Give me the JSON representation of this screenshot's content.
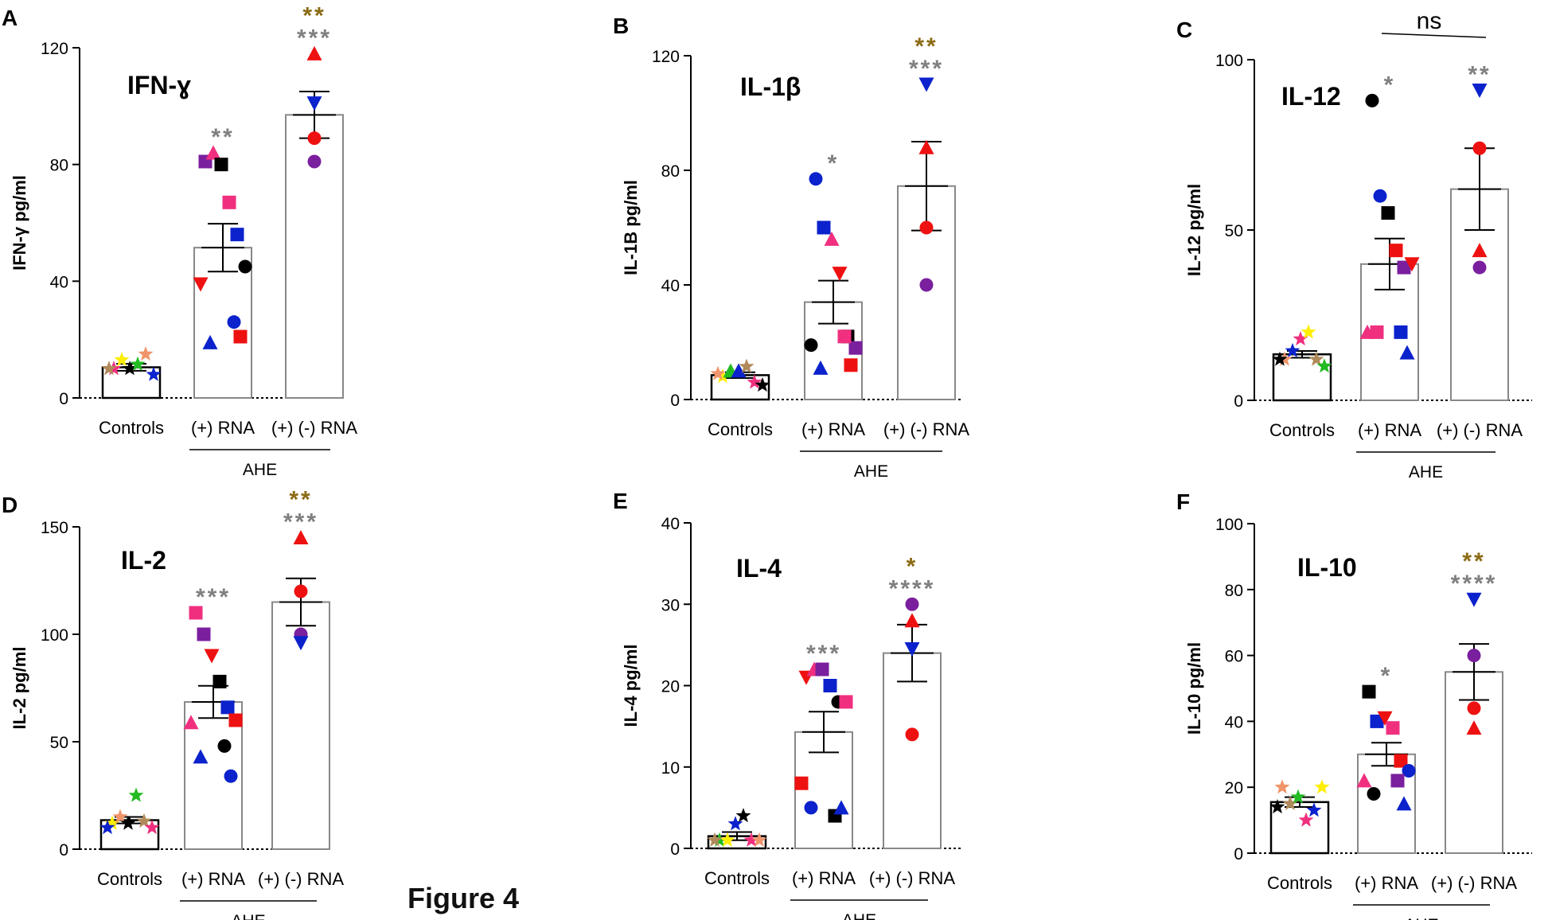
{
  "figure_label": "Figure 4",
  "colors": {
    "black": "#000000",
    "red": "#ee1111",
    "blue": "#0b22cc",
    "purple": "#7a1f9e",
    "pink": "#f0307f",
    "yellow": "#ffee00",
    "green": "#22bb22",
    "orange": "#f0956a",
    "tan": "#b08a5a",
    "grey_star": "#808080",
    "brown_star": "#8b6b14",
    "gold_star": "#8b6b14",
    "bar_fill": "#ffffff"
  },
  "group_label": "AHE",
  "chart_data": [
    {
      "panel": "A",
      "type": "bar",
      "title": "IFN-ɣ",
      "ylabel": "IFN-γ pg/ml",
      "ylim": [
        0,
        120
      ],
      "yticks": [
        0,
        40,
        80,
        120
      ],
      "categories": [
        "Controls",
        "(+) RNA",
        "(+) (-) RNA"
      ],
      "means": [
        10.5,
        51.5,
        97
      ],
      "sem": [
        1.2,
        8.2,
        8
      ],
      "sig_grey": [
        "",
        "**",
        "***"
      ],
      "sig_gold": [
        "",
        "",
        "**"
      ],
      "points": [
        [
          {
            "shape": "star",
            "color": "pink",
            "v": 10
          },
          {
            "shape": "star",
            "color": "yellow",
            "v": 13
          },
          {
            "shape": "star",
            "color": "black",
            "v": 10
          },
          {
            "shape": "star",
            "color": "green",
            "v": 11.5
          },
          {
            "shape": "star",
            "color": "orange",
            "v": 15
          },
          {
            "shape": "star",
            "color": "blue",
            "v": 8
          },
          {
            "shape": "star",
            "color": "tan",
            "v": 10
          }
        ],
        [
          {
            "shape": "square",
            "color": "purple",
            "v": 81
          },
          {
            "shape": "triangle",
            "color": "pink",
            "v": 84
          },
          {
            "shape": "square",
            "color": "black",
            "v": 80
          },
          {
            "shape": "square",
            "color": "pink",
            "v": 67
          },
          {
            "shape": "square",
            "color": "blue",
            "v": 56
          },
          {
            "shape": "circle",
            "color": "black",
            "v": 45
          },
          {
            "shape": "tri-down",
            "color": "red",
            "v": 39
          },
          {
            "shape": "circle",
            "color": "blue",
            "v": 26
          },
          {
            "shape": "triangle",
            "color": "blue",
            "v": 19
          },
          {
            "shape": "square",
            "color": "red",
            "v": 21
          }
        ],
        [
          {
            "shape": "triangle",
            "color": "red",
            "v": 118
          },
          {
            "shape": "tri-down",
            "color": "blue",
            "v": 101
          },
          {
            "shape": "circle",
            "color": "red",
            "v": 89
          },
          {
            "shape": "circle",
            "color": "purple",
            "v": 81
          }
        ]
      ]
    },
    {
      "panel": "B",
      "type": "bar",
      "title": "IL-1β",
      "ylabel": "IL-1B pg/ml",
      "ylim": [
        0,
        120
      ],
      "yticks": [
        0,
        40,
        80,
        120
      ],
      "categories": [
        "Controls",
        "(+) RNA",
        "(+) (-) RNA"
      ],
      "means": [
        8.5,
        34,
        74.5
      ],
      "sem": [
        1,
        7.5,
        15.5
      ],
      "sig_grey": [
        "",
        "*",
        "***"
      ],
      "sig_gold": [
        "",
        "",
        "**"
      ],
      "points": [
        [
          {
            "shape": "star",
            "color": "yellow",
            "v": 8
          },
          {
            "shape": "triangle",
            "color": "green",
            "v": 10
          },
          {
            "shape": "triangle",
            "color": "blue",
            "v": 10
          },
          {
            "shape": "star",
            "color": "tan",
            "v": 11.5
          },
          {
            "shape": "star",
            "color": "pink",
            "v": 6
          },
          {
            "shape": "star",
            "color": "black",
            "v": 5
          },
          {
            "shape": "star",
            "color": "orange",
            "v": 9
          }
        ],
        [
          {
            "shape": "circle",
            "color": "blue",
            "v": 77
          },
          {
            "shape": "square",
            "color": "blue",
            "v": 60
          },
          {
            "shape": "triangle",
            "color": "pink",
            "v": 56
          },
          {
            "shape": "tri-down",
            "color": "red",
            "v": 44
          },
          {
            "shape": "square",
            "color": "black",
            "v": 22
          },
          {
            "shape": "square",
            "color": "purple",
            "v": 18
          },
          {
            "shape": "circle",
            "color": "black",
            "v": 19
          },
          {
            "shape": "square",
            "color": "pink",
            "v": 22
          },
          {
            "shape": "triangle",
            "color": "blue",
            "v": 11
          },
          {
            "shape": "square",
            "color": "red",
            "v": 12
          }
        ],
        [
          {
            "shape": "tri-down",
            "color": "blue",
            "v": 110
          },
          {
            "shape": "triangle",
            "color": "red",
            "v": 88
          },
          {
            "shape": "circle",
            "color": "red",
            "v": 60
          },
          {
            "shape": "circle",
            "color": "purple",
            "v": 40
          }
        ]
      ]
    },
    {
      "panel": "C",
      "type": "bar",
      "title": "IL-12",
      "ylabel": "IL-12 pg/ml",
      "ylim": [
        0,
        100
      ],
      "yticks": [
        0,
        50,
        100
      ],
      "categories": [
        "Controls",
        "(+) RNA",
        "(+) (-) RNA"
      ],
      "means": [
        13.5,
        40,
        62
      ],
      "sem": [
        1,
        7.5,
        12
      ],
      "sig_grey": [
        "",
        "*",
        "**"
      ],
      "sig_gold": [
        "",
        "",
        ""
      ],
      "bracket_label": "ns",
      "points": [
        [
          {
            "shape": "star",
            "color": "orange",
            "v": 12
          },
          {
            "shape": "star",
            "color": "blue",
            "v": 14.5
          },
          {
            "shape": "star",
            "color": "pink",
            "v": 18
          },
          {
            "shape": "star",
            "color": "yellow",
            "v": 20
          },
          {
            "shape": "star",
            "color": "tan",
            "v": 12
          },
          {
            "shape": "star",
            "color": "green",
            "v": 10
          },
          {
            "shape": "star",
            "color": "black",
            "v": 12
          }
        ],
        [
          {
            "shape": "circle",
            "color": "black",
            "v": 88
          },
          {
            "shape": "circle",
            "color": "blue",
            "v": 60
          },
          {
            "shape": "square",
            "color": "black",
            "v": 55
          },
          {
            "shape": "square",
            "color": "red",
            "v": 44
          },
          {
            "shape": "square",
            "color": "purple",
            "v": 39
          },
          {
            "shape": "tri-down",
            "color": "red",
            "v": 40
          },
          {
            "shape": "triangle",
            "color": "pink",
            "v": 20
          },
          {
            "shape": "square",
            "color": "blue",
            "v": 20
          },
          {
            "shape": "square",
            "color": "pink",
            "v": 20
          },
          {
            "shape": "triangle",
            "color": "blue",
            "v": 14
          }
        ],
        [
          {
            "shape": "tri-down",
            "color": "blue",
            "v": 91
          },
          {
            "shape": "circle",
            "color": "red",
            "v": 74
          },
          {
            "shape": "triangle",
            "color": "red",
            "v": 44
          },
          {
            "shape": "circle",
            "color": "purple",
            "v": 39
          }
        ]
      ]
    },
    {
      "panel": "D",
      "type": "bar",
      "title": "IL-2",
      "ylabel": "IL-2 pg/ml",
      "ylim": [
        0,
        150
      ],
      "yticks": [
        0,
        50,
        100,
        150
      ],
      "categories": [
        "Controls",
        "(+) RNA",
        "(+) (-) RNA"
      ],
      "means": [
        13.5,
        68.5,
        115
      ],
      "sem": [
        1.5,
        7.5,
        11
      ],
      "sig_grey": [
        "",
        "***",
        "***"
      ],
      "sig_gold": [
        "",
        "",
        "**"
      ],
      "points": [
        [
          {
            "shape": "star",
            "color": "yellow",
            "v": 12
          },
          {
            "shape": "star",
            "color": "orange",
            "v": 15
          },
          {
            "shape": "star",
            "color": "black",
            "v": 12
          },
          {
            "shape": "star",
            "color": "green",
            "v": 25
          },
          {
            "shape": "star",
            "color": "tan",
            "v": 13
          },
          {
            "shape": "star",
            "color": "pink",
            "v": 10
          },
          {
            "shape": "star",
            "color": "blue",
            "v": 10
          }
        ],
        [
          {
            "shape": "square",
            "color": "pink",
            "v": 110
          },
          {
            "shape": "square",
            "color": "purple",
            "v": 100
          },
          {
            "shape": "tri-down",
            "color": "red",
            "v": 90
          },
          {
            "shape": "square",
            "color": "black",
            "v": 78
          },
          {
            "shape": "square",
            "color": "blue",
            "v": 66
          },
          {
            "shape": "square",
            "color": "red",
            "v": 60
          },
          {
            "shape": "triangle",
            "color": "pink",
            "v": 59
          },
          {
            "shape": "circle",
            "color": "black",
            "v": 48
          },
          {
            "shape": "triangle",
            "color": "blue",
            "v": 43
          },
          {
            "shape": "circle",
            "color": "blue",
            "v": 34
          }
        ],
        [
          {
            "shape": "triangle",
            "color": "red",
            "v": 145
          },
          {
            "shape": "circle",
            "color": "red",
            "v": 120
          },
          {
            "shape": "circle",
            "color": "purple",
            "v": 100
          },
          {
            "shape": "tri-down",
            "color": "blue",
            "v": 96
          }
        ]
      ]
    },
    {
      "panel": "E",
      "type": "bar",
      "title": "IL-4",
      "ylabel": "IL-4 pg/ml",
      "ylim": [
        0,
        40
      ],
      "yticks": [
        0,
        10,
        20,
        30,
        40
      ],
      "categories": [
        "Controls",
        "(+) RNA",
        "(+) (-) RNA"
      ],
      "means": [
        1.5,
        14.3,
        24
      ],
      "sem": [
        0.5,
        2.5,
        3.5
      ],
      "sig_grey": [
        "",
        "***",
        "****"
      ],
      "sig_gold": [
        "",
        "",
        "*"
      ],
      "points": [
        [
          {
            "shape": "star",
            "color": "green",
            "v": 1
          },
          {
            "shape": "star",
            "color": "yellow",
            "v": 1
          },
          {
            "shape": "star",
            "color": "blue",
            "v": 3
          },
          {
            "shape": "star",
            "color": "black",
            "v": 4
          },
          {
            "shape": "star",
            "color": "pink",
            "v": 1
          },
          {
            "shape": "star",
            "color": "orange",
            "v": 1
          },
          {
            "shape": "star",
            "color": "tan",
            "v": 1
          }
        ],
        [
          {
            "shape": "tri-down",
            "color": "red",
            "v": 21
          },
          {
            "shape": "triangle",
            "color": "pink",
            "v": 22
          },
          {
            "shape": "square",
            "color": "purple",
            "v": 22
          },
          {
            "shape": "square",
            "color": "blue",
            "v": 20
          },
          {
            "shape": "circle",
            "color": "black",
            "v": 18
          },
          {
            "shape": "square",
            "color": "pink",
            "v": 18
          },
          {
            "shape": "square",
            "color": "red",
            "v": 8
          },
          {
            "shape": "square",
            "color": "black",
            "v": 4
          },
          {
            "shape": "circle",
            "color": "blue",
            "v": 5
          },
          {
            "shape": "triangle",
            "color": "blue",
            "v": 5
          }
        ],
        [
          {
            "shape": "circle",
            "color": "purple",
            "v": 30
          },
          {
            "shape": "triangle",
            "color": "red",
            "v": 28
          },
          {
            "shape": "tri-down",
            "color": "blue",
            "v": 24.5
          },
          {
            "shape": "circle",
            "color": "red",
            "v": 14
          }
        ]
      ]
    },
    {
      "panel": "F",
      "type": "bar",
      "title": "IL-10",
      "ylabel": "IL-10 pg/ml",
      "ylim": [
        0,
        100
      ],
      "yticks": [
        0,
        20,
        40,
        60,
        80,
        100
      ],
      "categories": [
        "Controls",
        "(+) RNA",
        "(+) (-) RNA"
      ],
      "means": [
        15.5,
        30,
        55
      ],
      "sem": [
        1.5,
        3.5,
        8.5
      ],
      "sig_grey": [
        "",
        "*",
        "****"
      ],
      "sig_gold": [
        "",
        "",
        "**"
      ],
      "points": [
        [
          {
            "shape": "star",
            "color": "orange",
            "v": 20
          },
          {
            "shape": "star",
            "color": "tan",
            "v": 15
          },
          {
            "shape": "star",
            "color": "green",
            "v": 17
          },
          {
            "shape": "star",
            "color": "pink",
            "v": 10
          },
          {
            "shape": "star",
            "color": "blue",
            "v": 13
          },
          {
            "shape": "star",
            "color": "yellow",
            "v": 20
          },
          {
            "shape": "star",
            "color": "black",
            "v": 14
          }
        ],
        [
          {
            "shape": "square",
            "color": "black",
            "v": 49
          },
          {
            "shape": "square",
            "color": "blue",
            "v": 40
          },
          {
            "shape": "tri-down",
            "color": "red",
            "v": 41
          },
          {
            "shape": "square",
            "color": "pink",
            "v": 38
          },
          {
            "shape": "square",
            "color": "red",
            "v": 28
          },
          {
            "shape": "circle",
            "color": "blue",
            "v": 25
          },
          {
            "shape": "triangle",
            "color": "pink",
            "v": 22
          },
          {
            "shape": "square",
            "color": "purple",
            "v": 22
          },
          {
            "shape": "circle",
            "color": "black",
            "v": 18
          },
          {
            "shape": "triangle",
            "color": "blue",
            "v": 15
          }
        ],
        [
          {
            "shape": "tri-down",
            "color": "blue",
            "v": 77
          },
          {
            "shape": "circle",
            "color": "purple",
            "v": 60
          },
          {
            "shape": "circle",
            "color": "red",
            "v": 44
          },
          {
            "shape": "triangle",
            "color": "red",
            "v": 38
          }
        ]
      ]
    }
  ]
}
